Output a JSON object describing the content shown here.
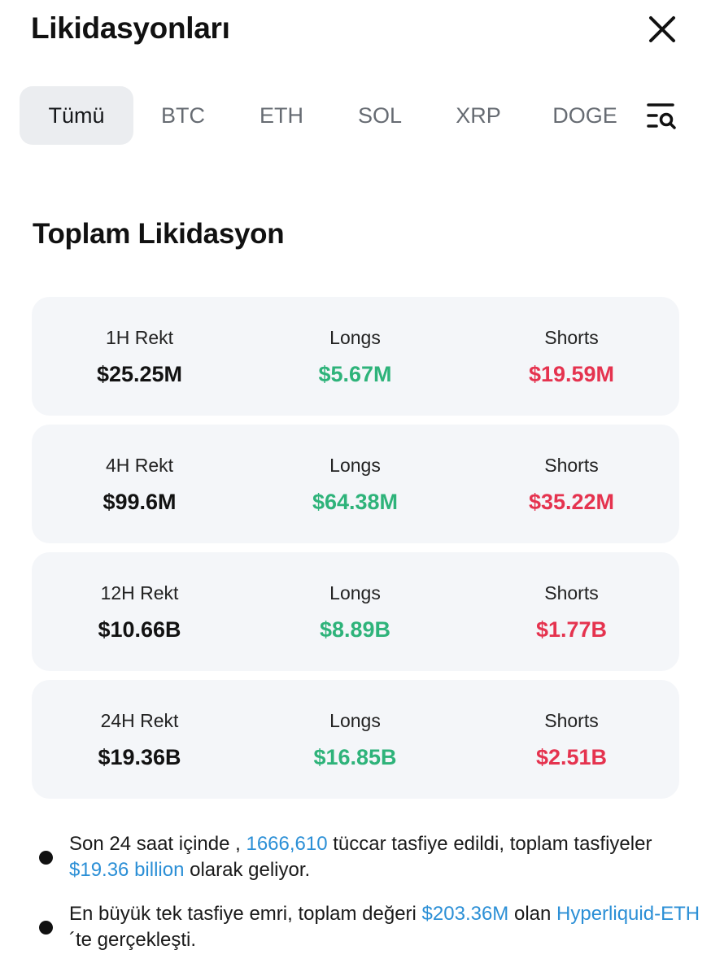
{
  "header": {
    "title": "Likidasyonları",
    "close_icon": "close-icon"
  },
  "tabs": [
    {
      "label": "Tümü",
      "active": true
    },
    {
      "label": "BTC",
      "active": false
    },
    {
      "label": "ETH",
      "active": false
    },
    {
      "label": "SOL",
      "active": false
    },
    {
      "label": "XRP",
      "active": false
    },
    {
      "label": "DOGE",
      "active": false
    }
  ],
  "filter_icon": "list-search-icon",
  "section": {
    "title": "Toplam Likidasyon"
  },
  "cards": [
    {
      "period": "1H Rekt",
      "total": "$25.25M",
      "longs_label": "Longs",
      "longs": "$5.67M",
      "shorts_label": "Shorts",
      "shorts": "$19.59M"
    },
    {
      "period": "4H Rekt",
      "total": "$99.6M",
      "longs_label": "Longs",
      "longs": "$64.38M",
      "shorts_label": "Shorts",
      "shorts": "$35.22M"
    },
    {
      "period": "12H Rekt",
      "total": "$10.66B",
      "longs_label": "Longs",
      "longs": "$8.89B",
      "shorts_label": "Shorts",
      "shorts": "$1.77B"
    },
    {
      "period": "24H Rekt",
      "total": "$19.36B",
      "longs_label": "Longs",
      "longs": "$16.85B",
      "shorts_label": "Shorts",
      "shorts": "$2.51B"
    }
  ],
  "notes": [
    {
      "part1": "Son 24 saat içinde , ",
      "hl1": "1666,610",
      "part2": " tüccar tasfiye edildi, toplam tasfiyeler ",
      "hl2": "$19.36 billion",
      "part3": " olarak geliyor."
    },
    {
      "part1": "En büyük tek tasfiye emri, toplam değeri ",
      "hl1": "$203.36M",
      "part2": " olan ",
      "hl2": "Hyperliquid-ETH",
      "part3": " ´te gerçekleşti."
    }
  ],
  "colors": {
    "long": "#2eb37a",
    "short": "#e5334f",
    "link": "#2b8fd6",
    "card_bg": "#f4f6f9",
    "tab_active_bg": "#ebedf0"
  }
}
